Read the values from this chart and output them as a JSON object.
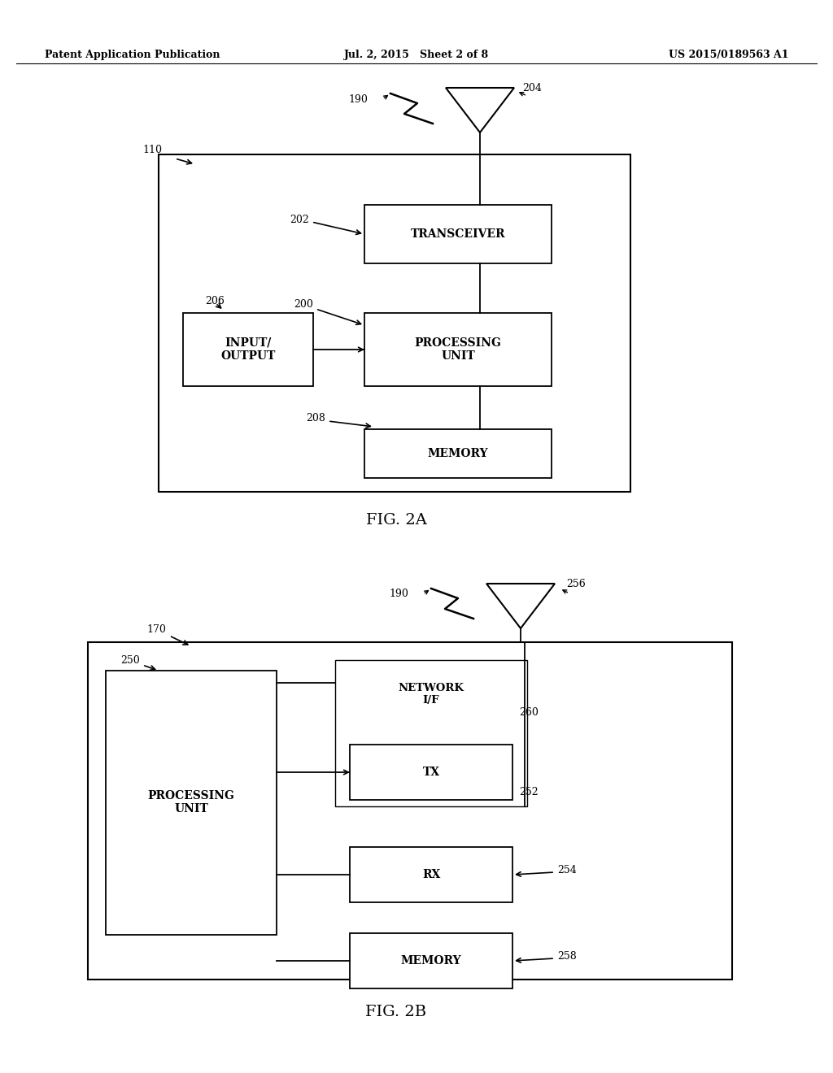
{
  "bg_color": "#ffffff",
  "header_left": "Patent Application Publication",
  "header_center": "Jul. 2, 2015   Sheet 2 of 8",
  "header_right": "US 2015/0189563 A1",
  "fig2a_label": "FIG. 2A",
  "fig2b_label": "FIG. 2B",
  "text_color": "#000000",
  "line_color": "#000000"
}
